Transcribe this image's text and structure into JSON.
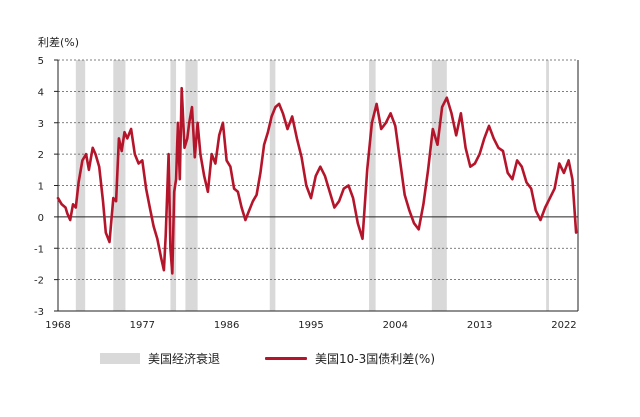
{
  "chart_data": {
    "type": "line",
    "ylabel": "利差(%)",
    "xlabel": "",
    "ylim": [
      -3,
      5
    ],
    "yticks": [
      "5",
      "4",
      "3",
      "2",
      "1",
      "0",
      "-1",
      "-2",
      "-3"
    ],
    "xlim": [
      1968,
      2023.5
    ],
    "xticks": [
      "1968",
      "1977",
      "1986",
      "1995",
      "2004",
      "2013",
      "2022"
    ],
    "grid": "horizontal dashed",
    "legend_position": "bottom",
    "colors": {
      "line": "#b5152b",
      "recession": "#d9d9d9"
    },
    "recessions_legend": "美国经济衰退",
    "series_legend": "美国10-3国债利差(%)",
    "recessions": [
      [
        1969.9,
        1970.9
      ],
      [
        1973.9,
        1975.2
      ],
      [
        1980.0,
        1980.6
      ],
      [
        1981.6,
        1982.9
      ],
      [
        1990.6,
        1991.2
      ],
      [
        2001.2,
        2001.9
      ],
      [
        2007.9,
        2009.5
      ],
      [
        2020.1,
        2020.4
      ]
    ],
    "series": [
      {
        "x": [
          1968.0,
          1968.4,
          1968.8,
          1969.0,
          1969.3,
          1969.6,
          1969.9,
          1970.2,
          1970.6,
          1971.0,
          1971.3,
          1971.7,
          1972.0,
          1972.4,
          1972.8,
          1973.1,
          1973.5,
          1973.9,
          1974.2,
          1974.5,
          1974.8,
          1975.1,
          1975.4,
          1975.8,
          1976.2,
          1976.6,
          1977.0,
          1977.4,
          1977.8,
          1978.2,
          1978.6,
          1979.0,
          1979.3,
          1979.5,
          1979.8,
          1980.0,
          1980.2,
          1980.4,
          1980.6,
          1980.8,
          1981.0,
          1981.2,
          1981.5,
          1981.8,
          1982.0,
          1982.3,
          1982.6,
          1982.9,
          1983.2,
          1983.6,
          1984.0,
          1984.4,
          1984.8,
          1985.2,
          1985.6,
          1986.0,
          1986.4,
          1986.8,
          1987.2,
          1987.6,
          1988.0,
          1988.4,
          1988.8,
          1989.2,
          1989.6,
          1990.0,
          1990.4,
          1990.8,
          1991.2,
          1991.6,
          1992.0,
          1992.5,
          1993.0,
          1993.5,
          1994.0,
          1994.5,
          1995.0,
          1995.5,
          1996.0,
          1996.5,
          1997.0,
          1997.5,
          1998.0,
          1998.5,
          1999.0,
          1999.5,
          2000.0,
          2000.5,
          2001.0,
          2001.5,
          2002.0,
          2002.5,
          2003.0,
          2003.5,
          2004.0,
          2004.5,
          2005.0,
          2005.5,
          2006.0,
          2006.5,
          2007.0,
          2007.5,
          2008.0,
          2008.5,
          2009.0,
          2009.5,
          2010.0,
          2010.5,
          2011.0,
          2011.5,
          2012.0,
          2012.5,
          2013.0,
          2013.5,
          2014.0,
          2014.5,
          2015.0,
          2015.5,
          2016.0,
          2016.5,
          2017.0,
          2017.5,
          2018.0,
          2018.5,
          2019.0,
          2019.5,
          2020.0,
          2020.5,
          2021.0,
          2021.5,
          2022.0,
          2022.5,
          2022.9,
          2023.3
        ],
        "values": [
          0.6,
          0.4,
          0.3,
          0.1,
          -0.1,
          0.4,
          0.3,
          1.1,
          1.8,
          2.0,
          1.5,
          2.2,
          2.0,
          1.6,
          0.5,
          -0.5,
          -0.8,
          0.6,
          0.5,
          2.5,
          2.1,
          2.7,
          2.5,
          2.8,
          2.0,
          1.7,
          1.8,
          0.9,
          0.3,
          -0.3,
          -0.7,
          -1.3,
          -1.7,
          -0.6,
          2.0,
          -1.0,
          -1.8,
          0.8,
          1.2,
          3.0,
          1.2,
          4.1,
          2.2,
          2.5,
          3.0,
          3.5,
          1.9,
          3.0,
          2.0,
          1.3,
          0.8,
          2.0,
          1.7,
          2.6,
          3.0,
          1.8,
          1.6,
          0.9,
          0.8,
          0.3,
          -0.1,
          0.2,
          0.5,
          0.7,
          1.4,
          2.3,
          2.7,
          3.2,
          3.5,
          3.6,
          3.3,
          2.8,
          3.2,
          2.5,
          1.9,
          1.0,
          0.6,
          1.3,
          1.6,
          1.3,
          0.8,
          0.3,
          0.5,
          0.9,
          1.0,
          0.6,
          -0.2,
          -0.7,
          1.5,
          3.0,
          3.6,
          2.8,
          3.0,
          3.3,
          2.9,
          1.8,
          0.7,
          0.2,
          -0.2,
          -0.4,
          0.4,
          1.5,
          2.8,
          2.3,
          3.5,
          3.8,
          3.3,
          2.6,
          3.3,
          2.2,
          1.6,
          1.7,
          2.0,
          2.5,
          2.9,
          2.5,
          2.2,
          2.1,
          1.4,
          1.2,
          1.8,
          1.6,
          1.1,
          0.9,
          0.2,
          -0.1,
          0.3,
          0.6,
          0.9,
          1.7,
          1.4,
          1.8,
          1.2,
          -0.5
        ]
      }
    ]
  }
}
